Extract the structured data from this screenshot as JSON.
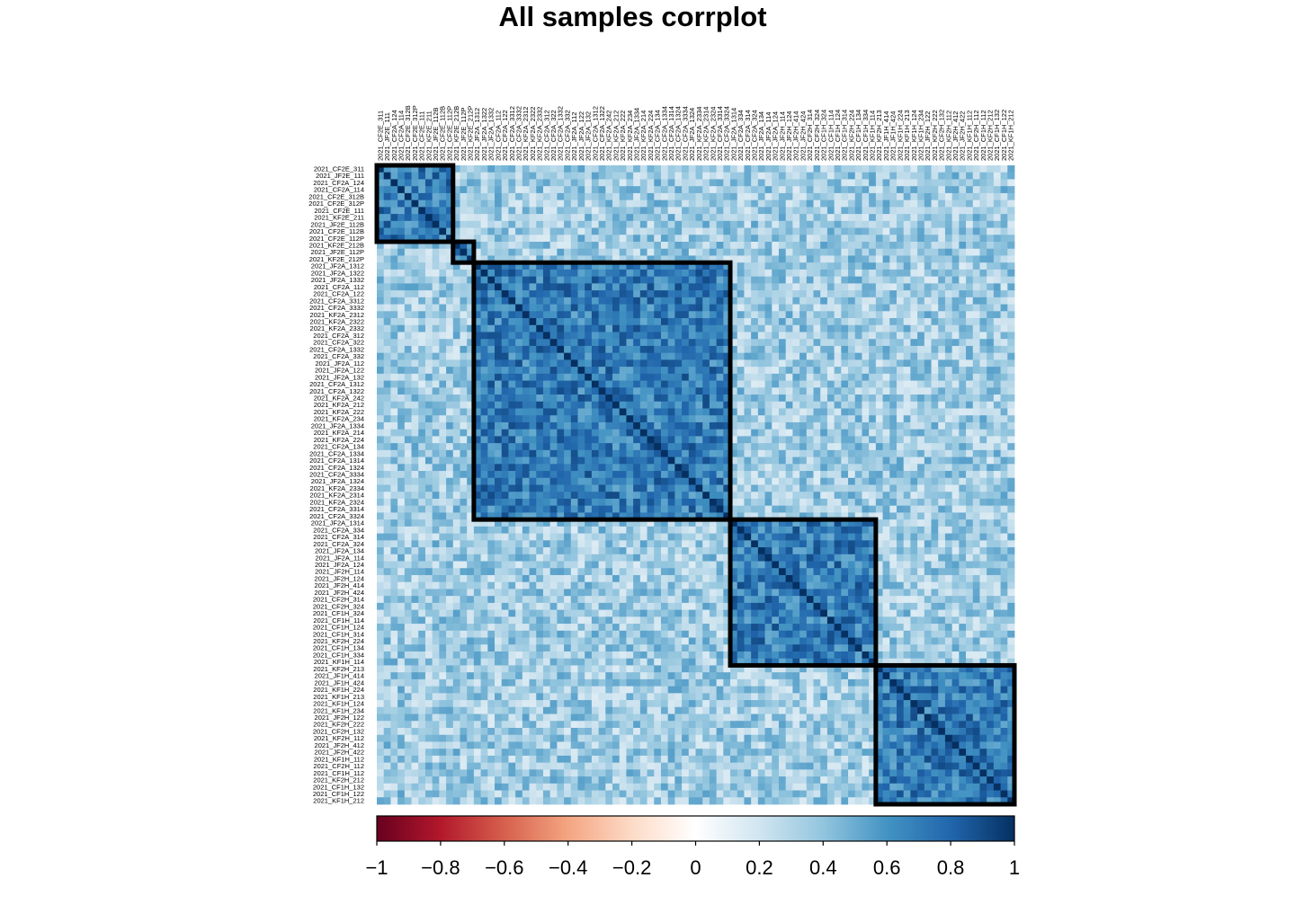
{
  "chart_data": {
    "type": "heatmap",
    "title": "All samples corrplot",
    "labels": [
      "2021_CF2E_311",
      "2021_JF2E_111",
      "2021_CF2A_124",
      "2021_CF2A_114",
      "2021_CF2E_312B",
      "2021_CF2E_312P",
      "2021_CF2E_111",
      "2021_KF2E_211",
      "2021_JF2E_112B",
      "2021_CF2E_112B",
      "2021_CF2E_112P",
      "2021_KF2E_212B",
      "2021_JF2E_112P",
      "2021_KF2E_212P",
      "2021_JF2A_1312",
      "2021_JF2A_1322",
      "2021_JF2A_1332",
      "2021_CF2A_112",
      "2021_CF2A_122",
      "2021_CF2A_3312",
      "2021_CF2A_3332",
      "2021_KF2A_2312",
      "2021_KF2A_2322",
      "2021_KF2A_2332",
      "2021_CF2A_312",
      "2021_CF2A_322",
      "2021_CF2A_1332",
      "2021_CF2A_332",
      "2021_JF2A_112",
      "2021_JF2A_122",
      "2021_JF2A_132",
      "2021_CF2A_1312",
      "2021_CF2A_1322",
      "2021_KF2A_242",
      "2021_KF2A_212",
      "2021_KF2A_222",
      "2021_KF2A_234",
      "2021_JF2A_1334",
      "2021_KF2A_214",
      "2021_KF2A_224",
      "2021_CF2A_134",
      "2021_CF2A_1334",
      "2021_CF2A_1314",
      "2021_CF2A_1324",
      "2021_CF2A_3334",
      "2021_JF2A_1324",
      "2021_KF2A_2334",
      "2021_KF2A_2314",
      "2021_KF2A_2324",
      "2021_CF2A_3314",
      "2021_CF2A_3324",
      "2021_JF2A_1314",
      "2021_CF2A_334",
      "2021_CF2A_314",
      "2021_CF2A_324",
      "2021_JF2A_134",
      "2021_JF2A_114",
      "2021_JF2A_124",
      "2021_JF2H_114",
      "2021_JF2H_124",
      "2021_JF2H_414",
      "2021_JF2H_424",
      "2021_CF2H_314",
      "2021_CF2H_324",
      "2021_CF1H_324",
      "2021_CF1H_114",
      "2021_CF1H_124",
      "2021_CF1H_314",
      "2021_KF2H_224",
      "2021_CF1H_134",
      "2021_CF1H_334",
      "2021_KF1H_114",
      "2021_KF2H_213",
      "2021_JF1H_414",
      "2021_JF1H_424",
      "2021_KF1H_224",
      "2021_KF1H_213",
      "2021_KF1H_124",
      "2021_KF1H_234",
      "2021_JF2H_122",
      "2021_KF2H_222",
      "2021_CF2H_132",
      "2021_KF2H_112",
      "2021_JF2H_412",
      "2021_JF2H_422",
      "2021_KF1H_112",
      "2021_CF2H_112",
      "2021_CF1H_112",
      "2021_KF2H_212",
      "2021_CF1H_132",
      "2021_CF1H_122",
      "2021_KF1H_212"
    ],
    "clusters": [
      [
        1,
        11
      ],
      [
        12,
        14
      ],
      [
        15,
        51
      ],
      [
        52,
        72
      ],
      [
        73,
        92
      ]
    ],
    "value_range": [
      -1,
      1
    ],
    "colorbar": {
      "ticks": [
        -1,
        -0.8,
        -0.6,
        -0.4,
        -0.2,
        0,
        0.2,
        0.4,
        0.6,
        0.8,
        1
      ],
      "tick_labels": [
        "−1",
        "−0.8",
        "−0.6",
        "−0.4",
        "−0.2",
        "0",
        "0.2",
        "0.4",
        "0.6",
        "0.8",
        "1"
      ],
      "colors": [
        "#67001F",
        "#B2182B",
        "#D6604D",
        "#F4A582",
        "#FDDBC7",
        "#FFFFFF",
        "#D1E5F0",
        "#92C5DE",
        "#4393C3",
        "#2166AC",
        "#053061"
      ]
    },
    "diagonal_value": 1,
    "within_cluster_value": 0.7,
    "background_value": 0.35
  }
}
